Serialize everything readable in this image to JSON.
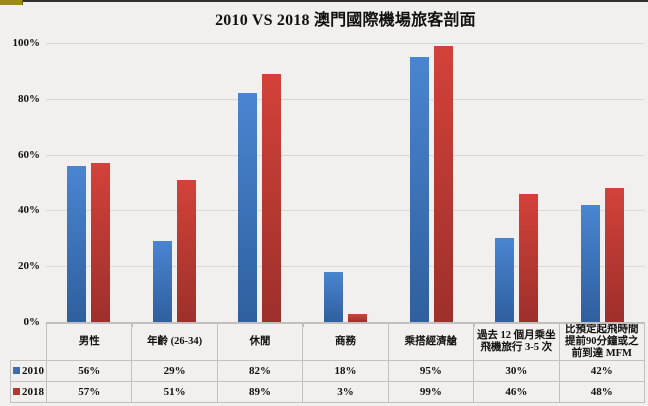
{
  "slide": {
    "background": "#F1F0EE",
    "top_border_color": "#31302B",
    "accent_bar_color": "#9C8A1C"
  },
  "chart_data": {
    "type": "bar",
    "title": "2010 VS 2018 澳門國際機場旅客剖面",
    "categories": [
      "男性",
      "年齡 (26-34)",
      "休閒",
      "商務",
      "乘搭經濟艙",
      "過去 12 個月乘坐飛機旅行 3-5 次",
      "比預定起飛時間提前90分鐘或之前到達 MFM"
    ],
    "series": [
      {
        "name": "2010",
        "color": "#3B6CB4",
        "gradient_top": "#4A85D1",
        "gradient_bottom": "#2F5F9E",
        "values": [
          56,
          29,
          82,
          18,
          95,
          30,
          42
        ]
      },
      {
        "name": "2018",
        "color": "#B03A32",
        "gradient_top": "#D2423A",
        "gradient_bottom": "#9E2F2B",
        "values": [
          57,
          51,
          89,
          3,
          99,
          46,
          48
        ]
      }
    ],
    "value_suffix": "%",
    "xlabel": "",
    "ylabel": "",
    "ylim": [
      0,
      100
    ],
    "ytick_interval": 20,
    "yticks": [
      "100%",
      "80%",
      "60%",
      "40%",
      "20%",
      "0%"
    ],
    "grid": true,
    "gridline_color": "#D9D8D6",
    "axis_color": "#BFBEBC",
    "legend_position": "data-table-left"
  }
}
